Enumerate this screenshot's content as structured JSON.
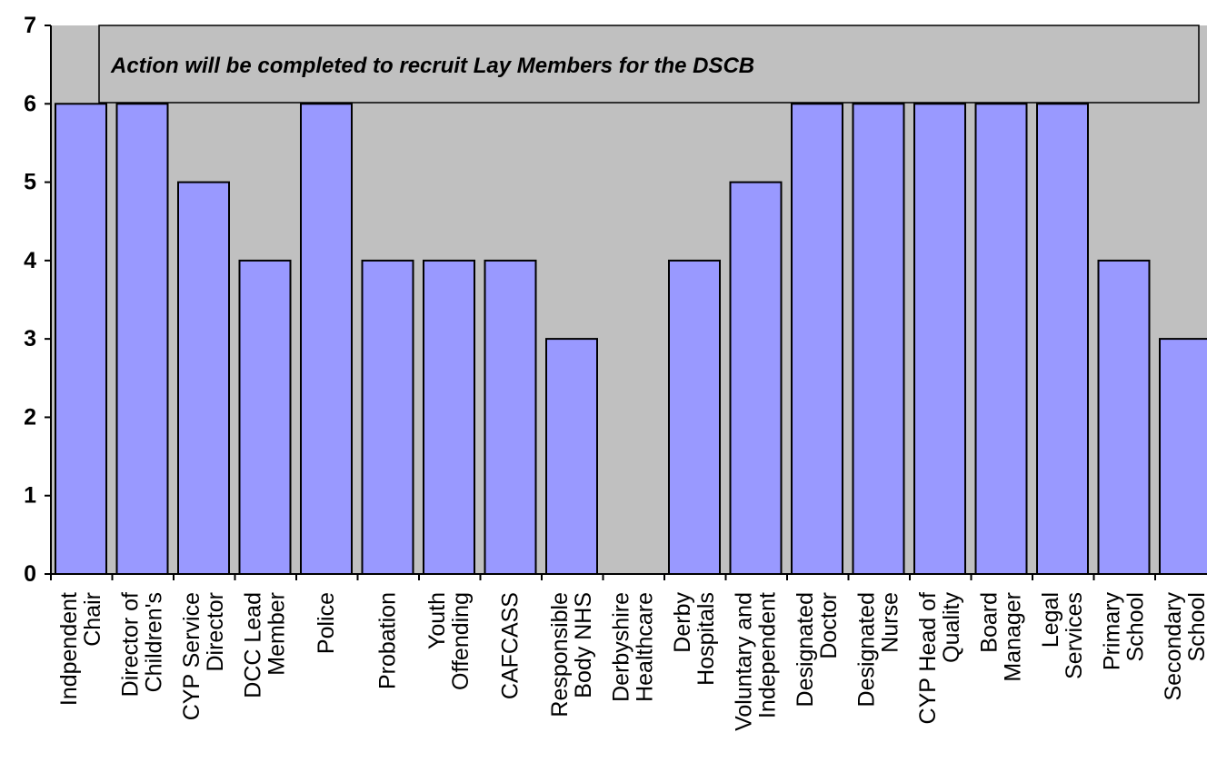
{
  "chart_data": {
    "type": "bar",
    "title": "",
    "xlabel": "",
    "ylabel": "",
    "ylim": [
      0,
      7
    ],
    "yticks": [
      0,
      1,
      2,
      3,
      4,
      5,
      6,
      7
    ],
    "grid": false,
    "colors": {
      "plot_bg": "#c0c0c0",
      "bar_fill": "#9999ff",
      "bar_stroke": "#000000",
      "annotation_bg": "#c0c0c0"
    },
    "annotation": "Action will be completed to recruit Lay Members for the DSCB",
    "categories": [
      [
        "Indpendent",
        "Chair"
      ],
      [
        "Director of",
        "Children's"
      ],
      [
        "CYP Service",
        "Director"
      ],
      [
        "DCC Lead",
        "Member"
      ],
      [
        "Police"
      ],
      [
        "Probation"
      ],
      [
        "Youth",
        "Offending"
      ],
      [
        "CAFCASS"
      ],
      [
        "Responsible",
        "Body NHS"
      ],
      [
        "Derbyshire",
        "Healthcare"
      ],
      [
        "Derby",
        "Hospitals"
      ],
      [
        "Voluntary and",
        "Independent"
      ],
      [
        "Designated",
        "Doctor"
      ],
      [
        "Designated",
        "Nurse"
      ],
      [
        "CYP Head of",
        "Quality"
      ],
      [
        "Board",
        "Manager"
      ],
      [
        "Legal",
        "Services"
      ],
      [
        "Primary",
        "School"
      ],
      [
        "Secondary",
        "School"
      ]
    ],
    "values": [
      6,
      6,
      5,
      4,
      6,
      4,
      4,
      4,
      3,
      0,
      4,
      5,
      6,
      6,
      6,
      6,
      6,
      4,
      3
    ]
  }
}
